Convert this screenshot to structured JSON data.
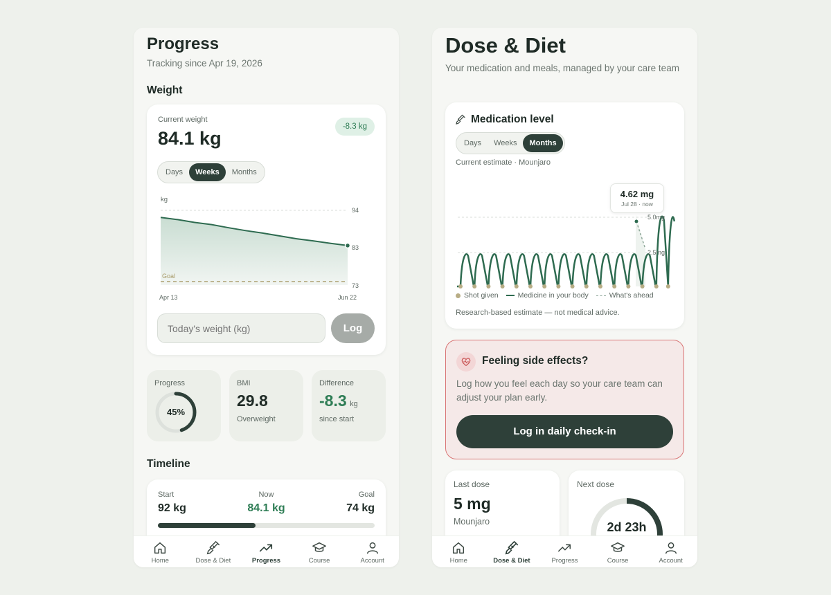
{
  "progress_screen": {
    "title": "Progress",
    "subtitle": "Tracking since Apr 19, 2026",
    "weight_section": "Weight",
    "weight_card": {
      "current_label": "Current weight",
      "current_value": "84.1 kg",
      "change_badge": "-8.3 kg",
      "ranges": [
        "Days",
        "Weeks",
        "Months"
      ],
      "active_range": "Weeks",
      "chart": {
        "unit_label": "kg",
        "goal_label": "Goal",
        "y_ticks": [
          "94",
          "83",
          "73"
        ],
        "x_start": "Apr 13",
        "x_end": "Jun 22",
        "series": [
          92.0,
          91.4,
          90.6,
          90.0,
          89.1,
          88.3,
          87.6,
          86.8,
          86.0,
          85.4,
          84.7,
          84.1
        ],
        "goal": 74,
        "ymin": 73,
        "ymax": 94
      },
      "input_placeholder": "Today's weight (kg)",
      "log_button": "Log"
    },
    "stats": {
      "progress_label": "Progress",
      "progress_value": "45%",
      "progress_fraction": 0.45,
      "bmi_label": "BMI",
      "bmi_value": "29.8",
      "bmi_note": "Overweight",
      "diff_label": "Difference",
      "diff_value": "-8.3",
      "diff_unit": "kg",
      "diff_note": "since start"
    },
    "timeline": {
      "title": "Timeline",
      "start_label": "Start",
      "start_value": "92 kg",
      "now_label": "Now",
      "now_value": "84.1 kg",
      "goal_label": "Goal",
      "goal_value": "74 kg",
      "progress_fraction": 0.45
    }
  },
  "dose_screen": {
    "title": "Dose & Diet",
    "subtitle": "Your medication and meals, managed by your care team",
    "medication_card": {
      "title": "Medication level",
      "ranges": [
        "Days",
        "Weeks",
        "Months"
      ],
      "active_range": "Months",
      "estimate_label": "Current estimate · Mounjaro",
      "tooltip_value": "4.62 mg",
      "tooltip_date": "Jul 28 · now",
      "y_ticks": [
        "5.0mg",
        "2.5mg"
      ],
      "legend": {
        "shot": "Shot given",
        "body": "Medicine in your body",
        "ahead": "What's ahead"
      },
      "disclaimer": "Research-based estimate — not medical advice."
    },
    "side_effects": {
      "title": "Feeling side effects?",
      "body": "Log how you feel each day so your care team can adjust your plan early.",
      "button": "Log in daily check-in"
    },
    "last_dose": {
      "label": "Last dose",
      "value": "5 mg",
      "drug": "Mounjaro"
    },
    "next_dose": {
      "label": "Next dose",
      "value": "2d 23h",
      "fraction": 0.6
    }
  },
  "tabs": [
    "Home",
    "Dose & Diet",
    "Progress",
    "Course",
    "Account"
  ],
  "colors": {
    "accent_dark": "#2e4039",
    "accent_green": "#2e7d55",
    "badge_bg": "#dff0e6",
    "alert_border": "#d97575",
    "alert_bg": "#f5e9e8"
  }
}
